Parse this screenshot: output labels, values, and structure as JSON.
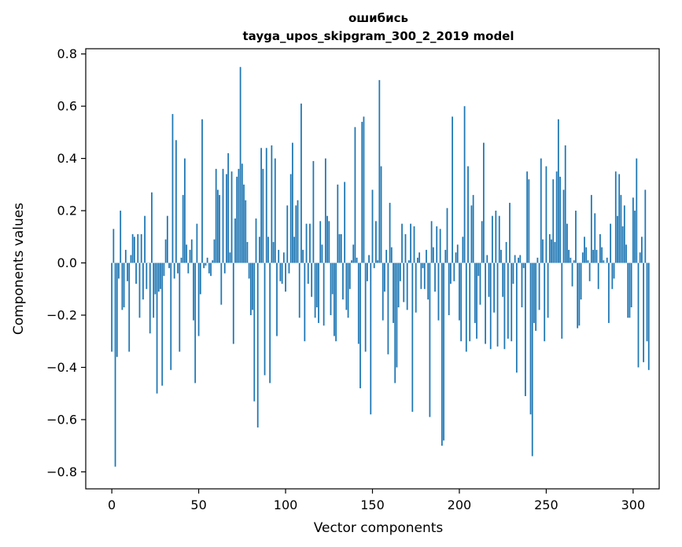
{
  "chart_data": {
    "type": "bar",
    "title": "ошибись",
    "subtitle": "tayga_upos_skipgram_300_2_2019 model",
    "xlabel": "Vector components",
    "ylabel": "Components values",
    "xlim": [
      -15,
      315
    ],
    "ylim": [
      -0.865,
      0.82
    ],
    "xticks": [
      0,
      50,
      100,
      150,
      200,
      250,
      300
    ],
    "yticks": [
      -0.8,
      -0.6,
      -0.4,
      -0.2,
      0.0,
      0.2,
      0.4,
      0.6,
      0.8
    ],
    "ytick_labels": [
      "−0.8",
      "−0.6",
      "−0.4",
      "−0.2",
      "0.0",
      "0.2",
      "0.4",
      "0.6",
      "0.8"
    ],
    "grid": false,
    "bar_color": "#1f77b4",
    "values": [
      -0.34,
      0.13,
      -0.78,
      -0.36,
      -0.06,
      0.2,
      -0.18,
      -0.17,
      0.05,
      -0.07,
      -0.34,
      0.03,
      0.11,
      0.1,
      -0.08,
      0.11,
      -0.21,
      0.11,
      -0.14,
      0.18,
      -0.1,
      0.0,
      -0.27,
      0.27,
      -0.21,
      -0.12,
      -0.5,
      -0.11,
      -0.1,
      -0.47,
      -0.05,
      0.09,
      0.18,
      -0.02,
      -0.41,
      0.57,
      -0.06,
      0.47,
      -0.04,
      -0.34,
      0.02,
      0.26,
      0.4,
      0.07,
      -0.04,
      0.05,
      0.09,
      -0.22,
      -0.46,
      0.15,
      -0.28,
      -0.12,
      0.55,
      -0.02,
      -0.01,
      0.02,
      -0.04,
      -0.05,
      0.01,
      0.09,
      0.36,
      0.28,
      0.26,
      -0.16,
      0.36,
      -0.04,
      0.34,
      0.42,
      0.04,
      0.35,
      -0.31,
      0.17,
      0.33,
      0.36,
      0.75,
      0.38,
      0.3,
      0.24,
      0.08,
      -0.06,
      -0.2,
      -0.18,
      -0.53,
      0.17,
      -0.63,
      0.1,
      0.44,
      0.36,
      -0.43,
      0.44,
      0.1,
      -0.46,
      0.45,
      0.08,
      0.4,
      -0.28,
      0.05,
      -0.07,
      -0.08,
      0.04,
      -0.11,
      0.22,
      -0.04,
      0.34,
      0.46,
      0.1,
      0.22,
      0.24,
      -0.21,
      0.61,
      0.05,
      -0.3,
      0.15,
      -0.08,
      0.15,
      -0.13,
      0.39,
      -0.21,
      -0.17,
      -0.23,
      0.16,
      0.07,
      -0.24,
      0.4,
      0.18,
      0.16,
      -0.2,
      -0.12,
      -0.28,
      -0.3,
      0.3,
      0.11,
      0.11,
      -0.14,
      0.31,
      -0.18,
      -0.21,
      -0.1,
      0.01,
      0.07,
      0.52,
      0.02,
      -0.31,
      -0.48,
      0.54,
      0.56,
      -0.34,
      -0.07,
      0.03,
      -0.58,
      0.28,
      -0.02,
      0.16,
      0.01,
      0.7,
      0.37,
      -0.22,
      -0.11,
      0.05,
      -0.35,
      0.23,
      0.06,
      -0.23,
      -0.46,
      -0.4,
      -0.17,
      -0.07,
      0.15,
      -0.15,
      0.11,
      -0.18,
      0.01,
      0.15,
      -0.57,
      0.14,
      -0.19,
      0.02,
      0.04,
      -0.1,
      -0.02,
      -0.1,
      0.05,
      -0.14,
      -0.59,
      0.16,
      0.06,
      -0.11,
      0.14,
      -0.22,
      0.13,
      -0.7,
      -0.68,
      0.05,
      0.21,
      -0.2,
      -0.08,
      0.56,
      -0.07,
      0.04,
      0.07,
      -0.22,
      -0.3,
      0.1,
      0.6,
      -0.34,
      0.37,
      -0.3,
      0.22,
      0.26,
      -0.23,
      -0.29,
      -0.05,
      -0.16,
      0.16,
      0.46,
      -0.31,
      0.03,
      -0.13,
      -0.33,
      0.18,
      -0.19,
      0.2,
      -0.32,
      0.18,
      0.05,
      -0.13,
      -0.33,
      0.08,
      -0.29,
      0.23,
      -0.3,
      -0.08,
      0.03,
      -0.42,
      0.02,
      0.03,
      -0.17,
      -0.02,
      -0.51,
      0.35,
      0.32,
      -0.58,
      -0.74,
      -0.23,
      -0.26,
      0.02,
      -0.18,
      0.4,
      0.09,
      -0.3,
      0.37,
      -0.21,
      0.11,
      0.09,
      0.32,
      0.08,
      0.35,
      0.55,
      0.33,
      -0.29,
      0.28,
      0.45,
      0.15,
      0.05,
      0.02,
      -0.09,
      0.01,
      0.2,
      -0.25,
      -0.24,
      -0.14,
      0.04,
      0.1,
      0.06,
      0.01,
      -0.07,
      0.26,
      0.05,
      0.19,
      0.05,
      -0.1,
      0.11,
      0.06,
      0.01,
      0.0,
      0.02,
      -0.23,
      0.15,
      -0.1,
      -0.06,
      0.35,
      0.18,
      0.34,
      0.26,
      0.14,
      0.22,
      0.07,
      -0.21,
      -0.21,
      -0.17,
      0.25,
      0.2,
      0.4,
      -0.4,
      0.04,
      0.1,
      -0.38,
      0.28,
      -0.3,
      -0.41
    ]
  }
}
